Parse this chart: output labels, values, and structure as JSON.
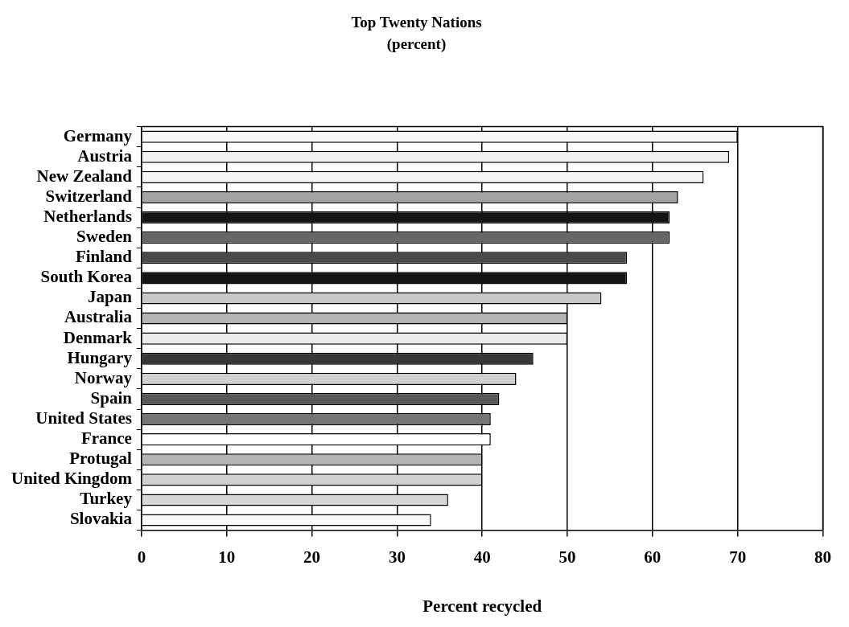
{
  "chart_data": {
    "type": "bar",
    "orientation": "horizontal",
    "title": "Top Twenty Nations",
    "subtitle": "(percent)",
    "xlabel": "Percent recycled",
    "categories": [
      "Germany",
      "Austria",
      "New Zealand",
      "Switzerland",
      "Netherlands",
      "Sweden",
      "Finland",
      "South Korea",
      "Japan",
      "Australia",
      "Denmark",
      "Hungary",
      "Norway",
      "Spain",
      "United States",
      "France",
      "Protugal",
      "United Kingdom",
      "Turkey",
      "Slovakia"
    ],
    "values": [
      70,
      69,
      66,
      63,
      62,
      62,
      57,
      57,
      54,
      50,
      50,
      46,
      44,
      42,
      41,
      41,
      40,
      40,
      36,
      34
    ],
    "colors": [
      "#f7f7f7",
      "#f0f0f0",
      "#f4f4f4",
      "#a3a3a3",
      "#141414",
      "#666666",
      "#4a4a4a",
      "#141414",
      "#c8c8c8",
      "#b3b3b3",
      "#ececec",
      "#373737",
      "#d0d0d0",
      "#585858",
      "#747474",
      "#ffffff",
      "#b3b3b3",
      "#d0d0d0",
      "#d6d6d6",
      "#fafafa"
    ],
    "xlim": [
      0,
      80
    ],
    "xticks": [
      0,
      10,
      20,
      30,
      40,
      50,
      60,
      70,
      80
    ],
    "grid": "x",
    "legend": false
  }
}
